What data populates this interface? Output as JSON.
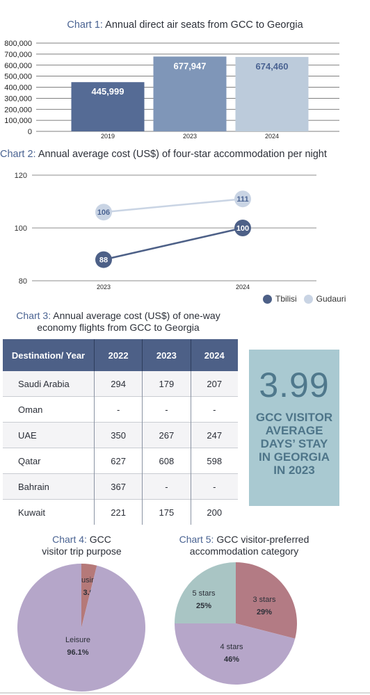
{
  "chart1": {
    "label": "Chart 1:",
    "title_rest": " Annual direct air seats from GCC to Georgia",
    "colors": [
      "#556b95",
      "#7f96b8",
      "#bccbdb"
    ],
    "value_label_colors": [
      "#ffffff",
      "#ffffff",
      "#4a6392"
    ],
    "ytick_labels": [
      "800,000",
      "700,000",
      "600,000",
      "500,000",
      "400,000",
      "300,000",
      "200,000",
      "100,000",
      "0"
    ]
  },
  "chart2": {
    "label": "Chart 2:",
    "title_rest": " Annual average cost (US$) of four-star accommodation per night",
    "ytick_labels": [
      "120",
      "100",
      "80"
    ],
    "legend": [
      {
        "name": "Tbilisi",
        "color": "#4d6087"
      },
      {
        "name": "Gudauri",
        "color": "#c9d4e4"
      }
    ]
  },
  "chart3": {
    "label": "Chart 3:",
    "title_line1": " Annual average cost (US$) of one-way",
    "title_line2": "economy flights from GCC to Georgia"
  },
  "stat": {
    "value": "3.99",
    "caption": "GCC VISITOR AVERAGE DAYS’ STAY IN GEORGIA IN 2023"
  },
  "chart4": {
    "label": "Chart 4:",
    "title_line1": " GCC",
    "title_line2": "visitor trip purpose",
    "colors": [
      "#b57979",
      "#b5a6c9"
    ]
  },
  "chart5": {
    "label": "Chart 5:",
    "title_line1": " GCC visitor-preferred",
    "title_line2": "accommodation category",
    "colors": [
      "#b37b84",
      "#b6a6c9",
      "#a9c5c4"
    ]
  },
  "chart_data": [
    {
      "type": "bar",
      "title": "Annual direct air seats from GCC to Georgia",
      "categories": [
        "2019",
        "2023",
        "2024"
      ],
      "values": [
        445999,
        677947,
        674460
      ],
      "value_labels": [
        "445,999",
        "677,947",
        "674,460"
      ],
      "ylim": [
        0,
        800000
      ],
      "grid": true
    },
    {
      "type": "line",
      "title": "Annual average cost (US$) of four-star accommodation per night",
      "x": [
        "2023",
        "2024"
      ],
      "ylim": [
        80,
        120
      ],
      "series": [
        {
          "name": "Tbilisi",
          "values": [
            88,
            100
          ]
        },
        {
          "name": "Gudauri",
          "values": [
            106,
            111
          ]
        }
      ],
      "legend": "bottom-right"
    },
    {
      "type": "table",
      "title": "Annual average cost (US$) of one-way economy flights from GCC to Georgia",
      "columns": [
        "Destination/ Year",
        "2022",
        "2023",
        "2024"
      ],
      "rows": [
        [
          "Saudi Arabia",
          "294",
          "179",
          "207"
        ],
        [
          "Oman",
          "-",
          "-",
          "-"
        ],
        [
          "UAE",
          "350",
          "267",
          "247"
        ],
        [
          "Qatar",
          "627",
          "608",
          "598"
        ],
        [
          "Bahrain",
          "367",
          "-",
          "-"
        ],
        [
          "Kuwait",
          "221",
          "175",
          "200"
        ]
      ]
    },
    {
      "type": "pie",
      "title": "GCC visitor trip purpose",
      "slices": [
        {
          "label": "Business",
          "value": 3.9,
          "value_label": "3.9%"
        },
        {
          "label": "Leisure",
          "value": 96.1,
          "value_label": "96.1%"
        }
      ]
    },
    {
      "type": "pie",
      "title": "GCC visitor-preferred accommodation category",
      "slices": [
        {
          "label": "3 stars",
          "value": 29,
          "value_label": "29%"
        },
        {
          "label": "4 stars",
          "value": 46,
          "value_label": "46%"
        },
        {
          "label": "5 stars",
          "value": 25,
          "value_label": "25%"
        }
      ]
    }
  ]
}
